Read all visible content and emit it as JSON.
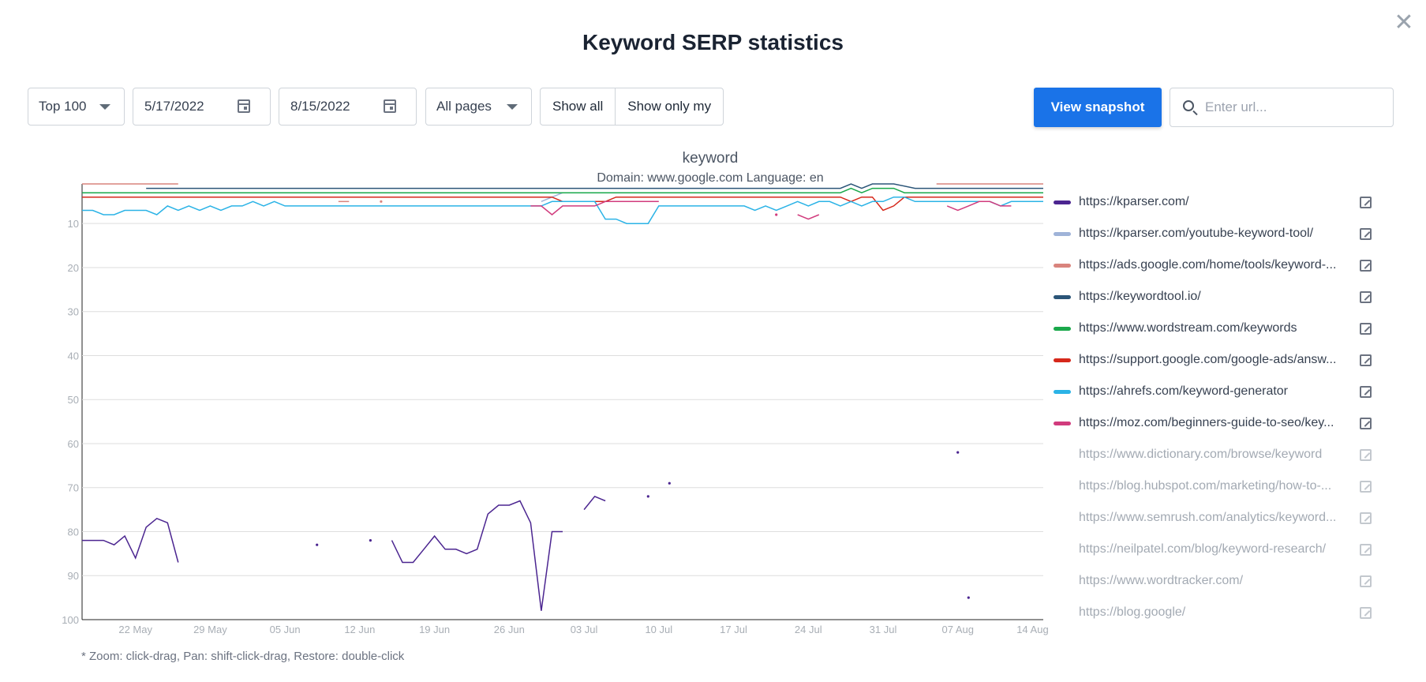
{
  "dialog": {
    "title": "Keyword SERP statistics",
    "close_icon": "close-icon"
  },
  "filters": {
    "top_select": "Top 100",
    "date_from": "5/17/2022",
    "date_to": "8/15/2022",
    "pages_select": "All pages",
    "show_all_label": "Show all",
    "show_only_my_label": "Show only my",
    "view_snapshot_label": "View snapshot",
    "search_placeholder": "Enter url..."
  },
  "chart_data": {
    "type": "line",
    "title": "keyword",
    "subtitle": "Domain: www.google.com Language: en",
    "y_axis": {
      "ticks": [
        10,
        20,
        30,
        40,
        50,
        60,
        70,
        80,
        90,
        100
      ],
      "range": [
        1,
        100
      ],
      "reversed": true
    },
    "x_axis": {
      "ticks": [
        "22 May",
        "29 May",
        "05 Jun",
        "12 Jun",
        "19 Jun",
        "26 Jun",
        "03 Jul",
        "10 Jul",
        "17 Jul",
        "24 Jul",
        "31 Jul",
        "07 Aug",
        "14 Aug"
      ],
      "start": "2022-05-17",
      "end": "2022-08-15"
    },
    "grid": true,
    "legend_placement": "right",
    "series": [
      {
        "name": "https://kparser.com/",
        "color": "#4b2590",
        "visible": true,
        "points": [
          [
            "2022-05-17",
            82
          ],
          [
            "2022-05-19",
            82
          ],
          [
            "2022-05-20",
            83
          ],
          [
            "2022-05-21",
            81
          ],
          [
            "2022-05-22",
            86
          ],
          [
            "2022-05-23",
            79
          ],
          [
            "2022-05-24",
            77
          ],
          [
            "2022-05-25",
            78
          ],
          [
            "2022-05-26",
            87
          ],
          null,
          [
            "2022-06-08",
            83
          ],
          null,
          [
            "2022-06-13",
            82
          ],
          null,
          [
            "2022-06-15",
            82
          ],
          [
            "2022-06-16",
            87
          ],
          [
            "2022-06-17",
            87
          ],
          [
            "2022-06-18",
            84
          ],
          [
            "2022-06-19",
            81
          ],
          [
            "2022-06-20",
            84
          ],
          [
            "2022-06-21",
            84
          ],
          [
            "2022-06-22",
            85
          ],
          [
            "2022-06-23",
            84
          ],
          [
            "2022-06-24",
            76
          ],
          [
            "2022-06-25",
            74
          ],
          [
            "2022-06-26",
            74
          ],
          [
            "2022-06-27",
            73
          ],
          [
            "2022-06-28",
            78
          ],
          [
            "2022-06-29",
            98
          ],
          [
            "2022-06-30",
            80
          ],
          [
            "2022-07-01",
            80
          ],
          null,
          [
            "2022-07-03",
            75
          ],
          [
            "2022-07-04",
            72
          ],
          [
            "2022-07-05",
            73
          ],
          null,
          [
            "2022-07-09",
            72
          ],
          null,
          [
            "2022-07-11",
            69
          ],
          null,
          [
            "2022-08-07",
            62
          ],
          null,
          [
            "2022-08-08",
            95
          ]
        ]
      },
      {
        "name": "https://kparser.com/youtube-keyword-tool/",
        "color": "#9fb3d8",
        "visible": true,
        "points": [
          [
            "2022-06-29",
            5
          ],
          [
            "2022-06-30",
            4
          ],
          [
            "2022-07-01",
            3
          ],
          [
            "2022-07-02",
            3
          ],
          [
            "2022-07-03",
            3
          ],
          [
            "2022-07-04",
            3
          ],
          [
            "2022-07-05",
            3
          ]
        ]
      },
      {
        "name": "https://ads.google.com/home/tools/keyword-...",
        "color": "#d9847d",
        "visible": true,
        "points": [
          [
            "2022-05-17",
            1
          ],
          [
            "2022-05-26",
            1
          ],
          null,
          [
            "2022-06-10",
            5
          ],
          [
            "2022-06-11",
            5
          ],
          null,
          [
            "2022-06-14",
            5
          ],
          null,
          [
            "2022-08-05",
            1
          ],
          [
            "2022-08-15",
            1
          ]
        ]
      },
      {
        "name": "https://keywordtool.io/",
        "color": "#2b5578",
        "visible": true,
        "points": [
          [
            "2022-05-23",
            2
          ],
          [
            "2022-07-27",
            2
          ],
          [
            "2022-07-28",
            1
          ],
          [
            "2022-07-29",
            2
          ],
          [
            "2022-07-30",
            1
          ],
          [
            "2022-08-01",
            1
          ],
          [
            "2022-08-03",
            2
          ],
          [
            "2022-08-15",
            2
          ]
        ]
      },
      {
        "name": "https://www.wordstream.com/keywords",
        "color": "#1aa84b",
        "visible": true,
        "points": [
          [
            "2022-05-17",
            3
          ],
          [
            "2022-07-27",
            3
          ],
          [
            "2022-07-28",
            2
          ],
          [
            "2022-07-29",
            3
          ],
          [
            "2022-07-30",
            2
          ],
          [
            "2022-08-01",
            2
          ],
          [
            "2022-08-02",
            3
          ],
          [
            "2022-08-15",
            3
          ]
        ]
      },
      {
        "name": "https://support.google.com/google-ads/answ...",
        "color": "#d6281b",
        "visible": true,
        "points": [
          [
            "2022-05-17",
            4
          ],
          [
            "2022-06-30",
            4
          ],
          [
            "2022-07-01",
            5
          ],
          [
            "2022-07-05",
            5
          ],
          [
            "2022-07-06",
            4
          ],
          [
            "2022-07-27",
            4
          ],
          [
            "2022-07-28",
            5
          ],
          [
            "2022-07-29",
            4
          ],
          [
            "2022-07-30",
            4
          ],
          [
            "2022-07-31",
            7
          ],
          [
            "2022-08-01",
            6
          ],
          [
            "2022-08-02",
            4
          ],
          [
            "2022-08-15",
            4
          ]
        ]
      },
      {
        "name": "https://ahrefs.com/keyword-generator",
        "color": "#2bb3e6",
        "visible": true,
        "points": [
          [
            "2022-05-17",
            7
          ],
          [
            "2022-05-18",
            7
          ],
          [
            "2022-05-19",
            8
          ],
          [
            "2022-05-20",
            8
          ],
          [
            "2022-05-21",
            7
          ],
          [
            "2022-05-22",
            7
          ],
          [
            "2022-05-23",
            7
          ],
          [
            "2022-05-24",
            8
          ],
          [
            "2022-05-25",
            6
          ],
          [
            "2022-05-26",
            7
          ],
          [
            "2022-05-27",
            6
          ],
          [
            "2022-05-28",
            7
          ],
          [
            "2022-05-29",
            6
          ],
          [
            "2022-05-30",
            7
          ],
          [
            "2022-05-31",
            6
          ],
          [
            "2022-06-01",
            6
          ],
          [
            "2022-06-02",
            5
          ],
          [
            "2022-06-03",
            6
          ],
          [
            "2022-06-04",
            5
          ],
          [
            "2022-06-05",
            6
          ],
          [
            "2022-06-29",
            6
          ],
          [
            "2022-06-30",
            5
          ],
          [
            "2022-07-04",
            5
          ],
          [
            "2022-07-05",
            9
          ],
          [
            "2022-07-06",
            9
          ],
          [
            "2022-07-07",
            10
          ],
          [
            "2022-07-08",
            10
          ],
          [
            "2022-07-09",
            10
          ],
          [
            "2022-07-10",
            6
          ],
          [
            "2022-07-18",
            6
          ],
          [
            "2022-07-19",
            7
          ],
          [
            "2022-07-20",
            6
          ],
          [
            "2022-07-21",
            7
          ],
          [
            "2022-07-22",
            6
          ],
          [
            "2022-07-23",
            5
          ],
          [
            "2022-07-24",
            6
          ],
          [
            "2022-07-25",
            5
          ],
          [
            "2022-07-26",
            5
          ],
          [
            "2022-07-27",
            6
          ],
          [
            "2022-07-28",
            5
          ],
          [
            "2022-07-29",
            6
          ],
          [
            "2022-07-30",
            5
          ],
          [
            "2022-07-31",
            5
          ],
          [
            "2022-08-01",
            4
          ],
          [
            "2022-08-02",
            4
          ],
          [
            "2022-08-03",
            5
          ],
          [
            "2022-08-06",
            5
          ],
          [
            "2022-08-07",
            5
          ],
          [
            "2022-08-08",
            5
          ],
          [
            "2022-08-09",
            5
          ],
          [
            "2022-08-10",
            5
          ],
          [
            "2022-08-11",
            6
          ],
          [
            "2022-08-12",
            5
          ],
          [
            "2022-08-15",
            5
          ]
        ]
      },
      {
        "name": "https://moz.com/beginners-guide-to-seo/key...",
        "color": "#d13b7d",
        "visible": true,
        "points": [
          [
            "2022-06-28",
            6
          ],
          [
            "2022-06-29",
            6
          ],
          [
            "2022-06-30",
            8
          ],
          [
            "2022-07-01",
            6
          ],
          [
            "2022-07-04",
            6
          ],
          [
            "2022-07-05",
            5
          ],
          [
            "2022-07-10",
            5
          ],
          null,
          [
            "2022-07-21",
            8
          ],
          null,
          [
            "2022-07-23",
            8
          ],
          [
            "2022-07-24",
            9
          ],
          [
            "2022-07-25",
            8
          ],
          null,
          [
            "2022-08-06",
            6
          ],
          [
            "2022-08-07",
            7
          ],
          [
            "2022-08-08",
            6
          ],
          [
            "2022-08-09",
            5
          ],
          [
            "2022-08-10",
            5
          ],
          [
            "2022-08-11",
            6
          ],
          [
            "2022-08-12",
            6
          ]
        ]
      },
      {
        "name": "https://www.dictionary.com/browse/keyword",
        "color": "#c8ccd2",
        "visible": false,
        "points": []
      },
      {
        "name": "https://blog.hubspot.com/marketing/how-to-...",
        "color": "#c8ccd2",
        "visible": false,
        "points": []
      },
      {
        "name": "https://www.semrush.com/analytics/keyword...",
        "color": "#c8ccd2",
        "visible": false,
        "points": []
      },
      {
        "name": "https://neilpatel.com/blog/keyword-research/",
        "color": "#c8ccd2",
        "visible": false,
        "points": []
      },
      {
        "name": "https://www.wordtracker.com/",
        "color": "#c8ccd2",
        "visible": false,
        "points": []
      },
      {
        "name": "https://blog.google/",
        "color": "#c8ccd2",
        "visible": false,
        "points": []
      }
    ]
  },
  "hint": "* Zoom: click-drag, Pan: shift-click-drag, Restore: double-click"
}
